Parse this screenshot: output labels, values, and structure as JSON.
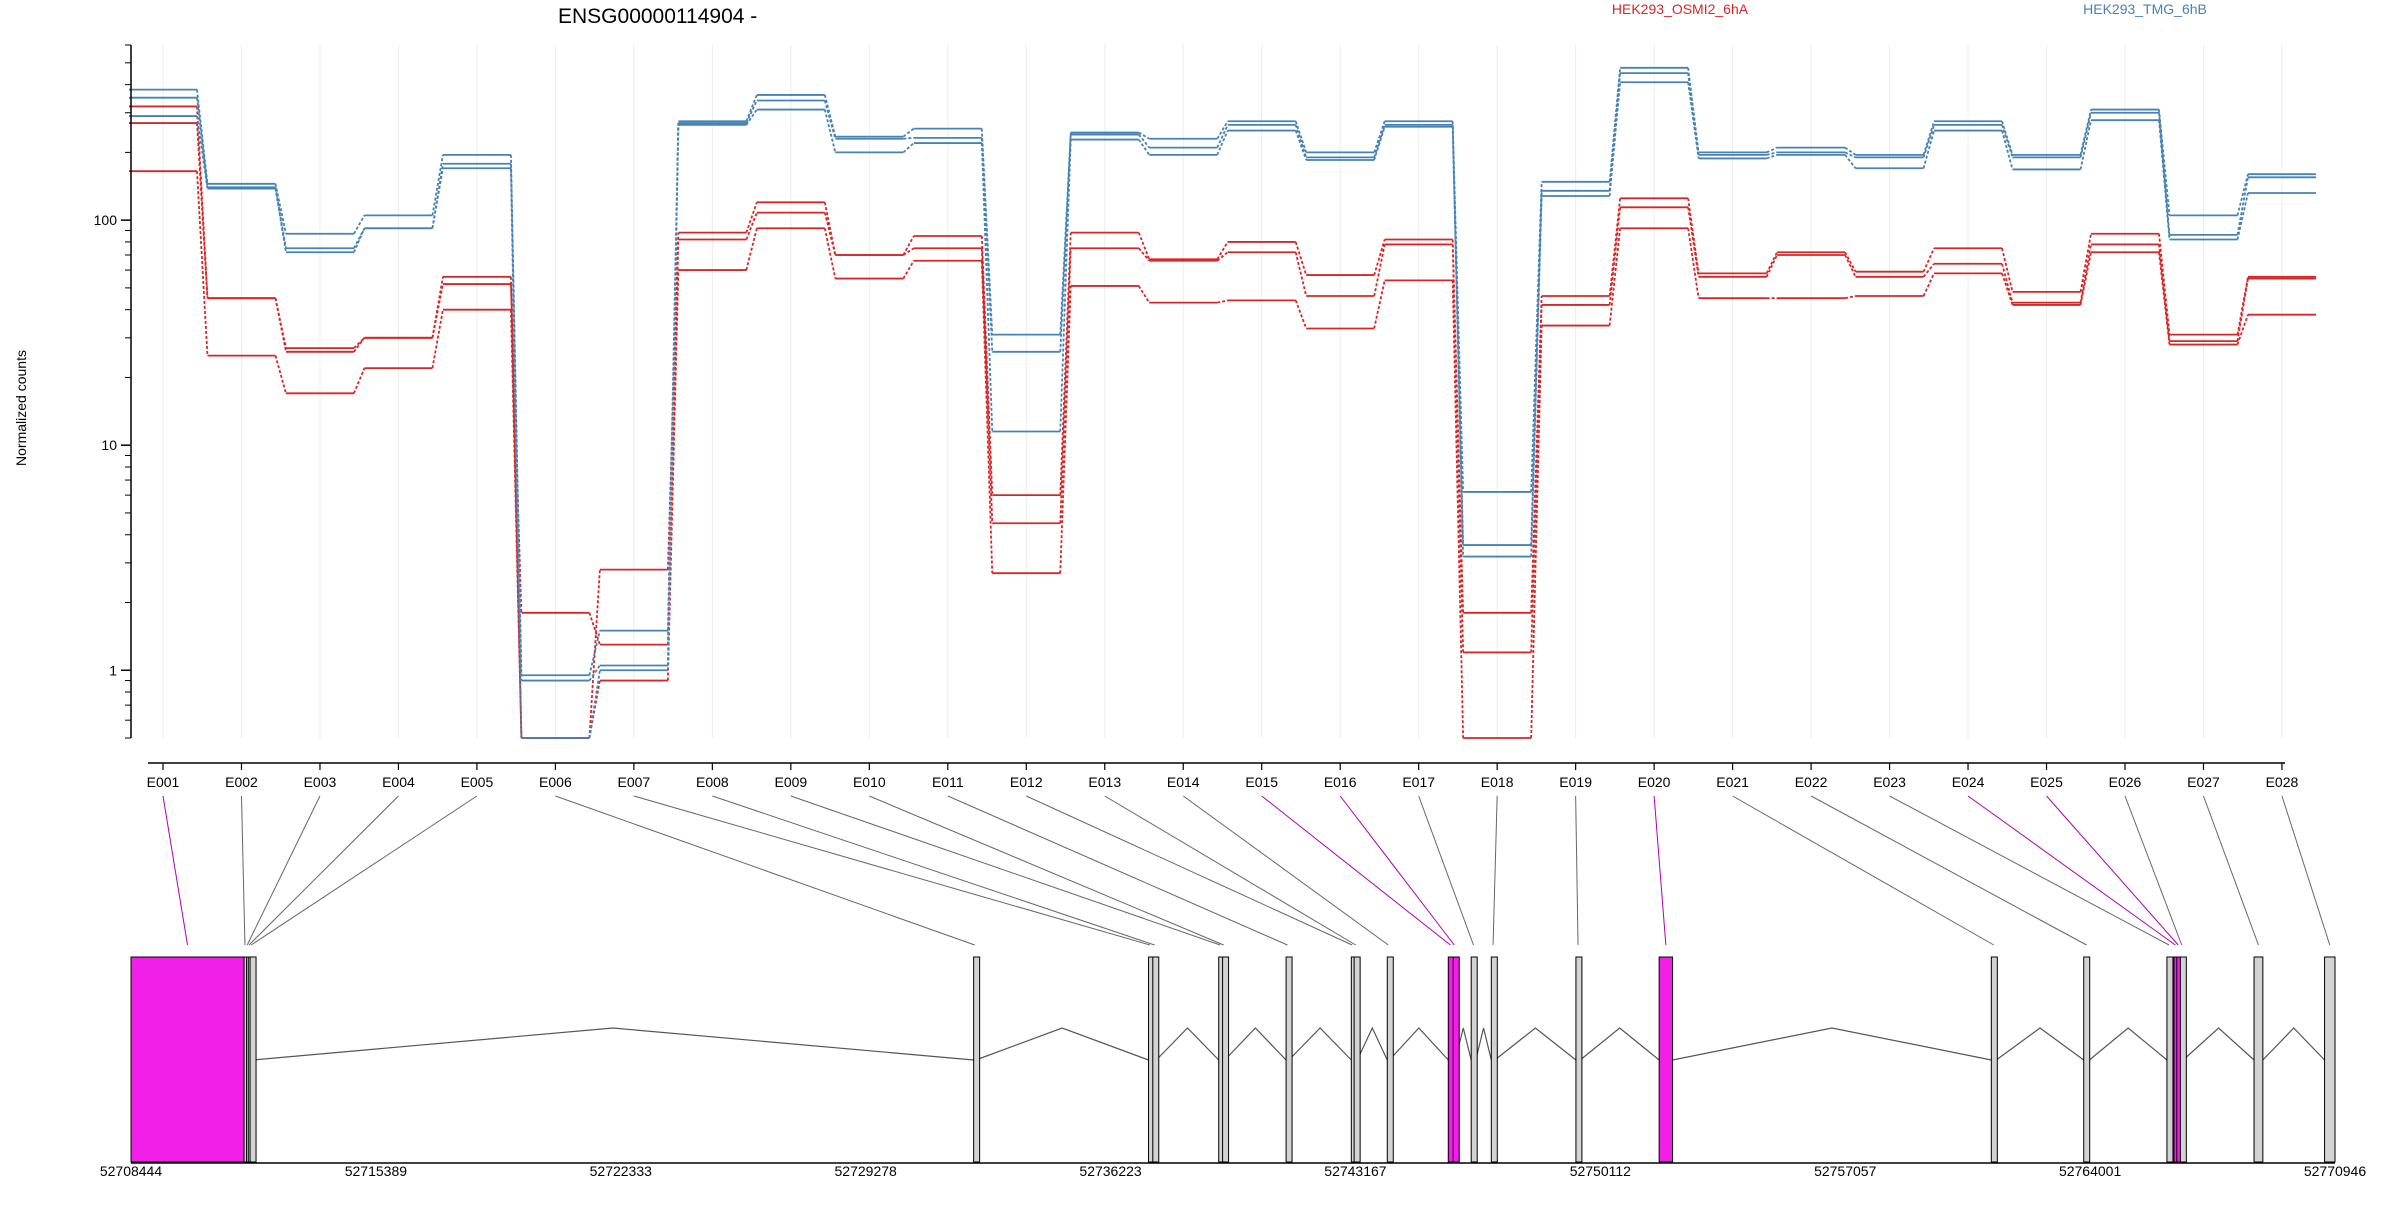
{
  "chart_data": {
    "type": "line",
    "title": "ENSG00000114904 -",
    "ylabel": "Normalized counts",
    "yscale": "log",
    "ylim": [
      0.5,
      600
    ],
    "y_ticks": [
      1,
      10,
      100
    ],
    "y_tick_labels": [
      "1",
      "10",
      "100"
    ],
    "grid": "vertical",
    "legend_placement": "top",
    "categories": [
      "E001",
      "E002",
      "E003",
      "E004",
      "E005",
      "E006",
      "E007",
      "E008",
      "E009",
      "E010",
      "E011",
      "E012",
      "E013",
      "E014",
      "E015",
      "E016",
      "E017",
      "E018",
      "E019",
      "E020",
      "E021",
      "E022",
      "E023",
      "E024",
      "E025",
      "E026",
      "E027",
      "E028"
    ],
    "series": [
      {
        "name": "HEK293_OSMI2_6hA",
        "color": "#d62728",
        "samples": [
          [
            320,
            45,
            27,
            30,
            56,
            0.5,
            2.8,
            88,
            120,
            70,
            85,
            6,
            88,
            67,
            80,
            57,
            82,
            1.8,
            46,
            125,
            58,
            72,
            59,
            75,
            48,
            87,
            31,
            56
          ],
          [
            270,
            45,
            26,
            30,
            52,
            1.8,
            1.3,
            82,
            108,
            70,
            75,
            4.5,
            75,
            66,
            72,
            46,
            78,
            1.2,
            42,
            114,
            56,
            70,
            56,
            64,
            43,
            78,
            29,
            55
          ],
          [
            165,
            25,
            17,
            22,
            40,
            0.5,
            0.9,
            60,
            92,
            55,
            66,
            2.7,
            51,
            43,
            44,
            33,
            54,
            0.5,
            34,
            92,
            45,
            45,
            46,
            58,
            42,
            72,
            28,
            38
          ]
        ]
      },
      {
        "name": "HEK293_TMG_6hB",
        "color": "#4682b4",
        "samples": [
          [
            380,
            145,
            87,
            105,
            195,
            0.95,
            1.5,
            275,
            360,
            235,
            255,
            31,
            245,
            230,
            275,
            200,
            275,
            6.2,
            148,
            475,
            200,
            210,
            195,
            275,
            195,
            310,
            105,
            160
          ],
          [
            350,
            140,
            75,
            92,
            178,
            0.9,
            1.05,
            270,
            340,
            230,
            232,
            26,
            240,
            210,
            265,
            190,
            265,
            3.6,
            135,
            450,
            195,
            200,
            190,
            265,
            190,
            300,
            86,
            155
          ],
          [
            290,
            138,
            72,
            92,
            170,
            0.5,
            1.0,
            265,
            310,
            200,
            220,
            11.5,
            228,
            195,
            250,
            185,
            260,
            3.2,
            128,
            410,
            188,
            195,
            170,
            250,
            168,
            278,
            82,
            132
          ]
        ]
      }
    ],
    "gene_model": {
      "coord_labels": [
        "52708444",
        "52715389",
        "52722333",
        "52729278",
        "52736223",
        "52743167",
        "52750112",
        "52757057",
        "52764001",
        "52770946"
      ],
      "range": [
        52708444,
        52770946
      ],
      "highlight_color": "#f21fe8",
      "exon_color": "#d3d3d3",
      "exons": [
        {
          "id": "E001",
          "start": 52708444,
          "end": 52711650,
          "highlight": true
        },
        {
          "id": "E002",
          "start": 52711650,
          "end": 52711700,
          "highlight": false
        },
        {
          "id": "E003",
          "start": 52711720,
          "end": 52711760,
          "highlight": false
        },
        {
          "id": "E004",
          "start": 52711770,
          "end": 52711810,
          "highlight": false
        },
        {
          "id": "E005",
          "start": 52711820,
          "end": 52711880,
          "highlight": false
        },
        {
          "id": "E006",
          "start": 52732340,
          "end": 52732400,
          "highlight": false
        },
        {
          "id": "E007",
          "start": 52737300,
          "end": 52737380,
          "highlight": false
        },
        {
          "id": "E008",
          "start": 52737420,
          "end": 52737520,
          "highlight": false
        },
        {
          "id": "E009",
          "start": 52739290,
          "end": 52739370,
          "highlight": false
        },
        {
          "id": "E010",
          "start": 52739400,
          "end": 52739460,
          "highlight": false
        },
        {
          "id": "E011",
          "start": 52741200,
          "end": 52741280,
          "highlight": false
        },
        {
          "id": "E012",
          "start": 52743050,
          "end": 52743100,
          "highlight": false
        },
        {
          "id": "E013",
          "start": 52743130,
          "end": 52743220,
          "highlight": false
        },
        {
          "id": "E014",
          "start": 52744070,
          "end": 52744130,
          "highlight": false
        },
        {
          "id": "E015",
          "start": 52745800,
          "end": 52745920,
          "highlight": true
        },
        {
          "id": "E016",
          "start": 52745940,
          "end": 52746000,
          "highlight": true
        },
        {
          "id": "E017",
          "start": 52746450,
          "end": 52746580,
          "highlight": false
        },
        {
          "id": "E018",
          "start": 52747020,
          "end": 52747120,
          "highlight": false
        },
        {
          "id": "E019",
          "start": 52749420,
          "end": 52749540,
          "highlight": false
        },
        {
          "id": "E020",
          "start": 52751780,
          "end": 52752160,
          "highlight": true
        },
        {
          "id": "E021",
          "start": 52761200,
          "end": 52761340,
          "highlight": false
        },
        {
          "id": "E022",
          "start": 52763820,
          "end": 52763980,
          "highlight": false
        },
        {
          "id": "E023",
          "start": 52766180,
          "end": 52766300,
          "highlight": false
        },
        {
          "id": "E024",
          "start": 52766380,
          "end": 52766460,
          "highlight": true
        },
        {
          "id": "E025",
          "start": 52766460,
          "end": 52766540,
          "highlight": true
        },
        {
          "id": "E026",
          "start": 52766560,
          "end": 52766640,
          "highlight": false
        },
        {
          "id": "E027",
          "start": 52768650,
          "end": 52768900,
          "highlight": false
        },
        {
          "id": "E028",
          "start": 52770650,
          "end": 52770946,
          "highlight": false
        }
      ]
    }
  }
}
